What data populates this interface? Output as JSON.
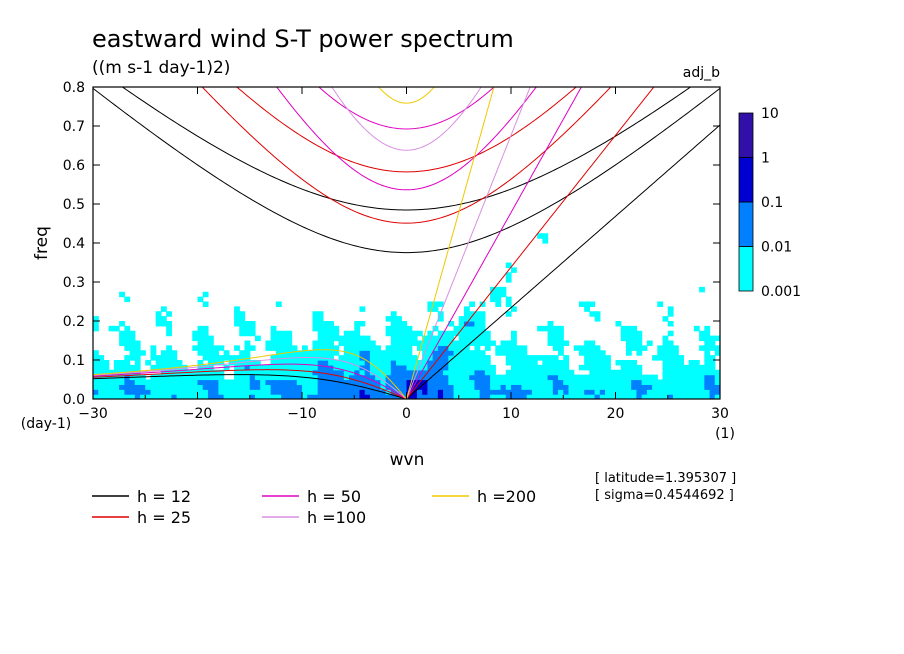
{
  "chart_data": {
    "type": "heatmap",
    "title": "eastward wind S-T power spectrum",
    "subtitle": "((m s-1 day-1)2)",
    "tag": "adj_b",
    "xlabel": "wvn",
    "xunit": "(1)",
    "ylabel": "freq",
    "yunit": "(day-1)",
    "xlim": [
      -30,
      30
    ],
    "ylim": [
      0,
      0.8
    ],
    "xticks": [
      -30,
      -20,
      -10,
      0,
      10,
      20,
      30
    ],
    "yticks": [
      0.0,
      0.1,
      0.2,
      0.3,
      0.4,
      0.5,
      0.6,
      0.7,
      0.8
    ],
    "xtick_labels": [
      "−30",
      "−20",
      "−10",
      "0",
      "10",
      "20",
      "30"
    ],
    "ytick_labels": [
      "0.0",
      "0.1",
      "0.2",
      "0.3",
      "0.4",
      "0.5",
      "0.6",
      "0.7",
      "0.8"
    ],
    "colorbar": {
      "levels": [
        "0.001",
        "0.01",
        "0.1",
        "1",
        "10"
      ],
      "colors": [
        "#00ffff",
        "#0080ff",
        "#0000d0",
        "#3010a8"
      ]
    },
    "annotations": [
      "[ latitude=1.395307 ]",
      "[ sigma=0.4544692 ]"
    ],
    "series": [
      {
        "name": "h = 12",
        "color": "#000000",
        "equivalent_depth": 12
      },
      {
        "name": "h = 25",
        "color": "#e00000",
        "equivalent_depth": 25
      },
      {
        "name": "h = 50",
        "color": "#e000c0",
        "equivalent_depth": 50
      },
      {
        "name": "h =100",
        "color": "#d890e0",
        "equivalent_depth": 100
      },
      {
        "name": "h =200",
        "color": "#f0c800",
        "equivalent_depth": 200
      }
    ]
  }
}
